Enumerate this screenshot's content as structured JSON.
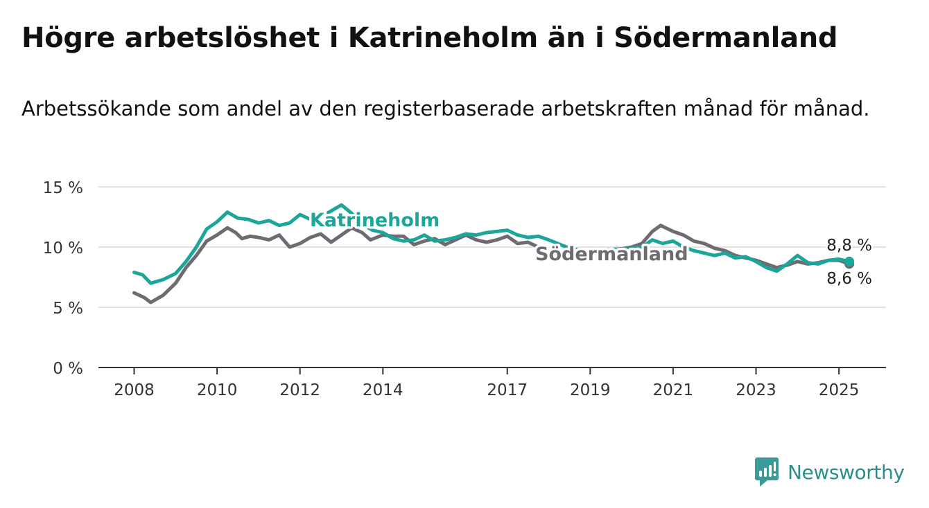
{
  "title": "Högre arbetslöshet i Katrineholm än i Södermanland",
  "subtitle": "Arbetssökande som andel av den registerbaserade arbetskraften månad för månad.",
  "brand": {
    "name": "Newsworthy",
    "icon": "newsworthy-logo-icon",
    "color": "#3a9b98"
  },
  "chart_data": {
    "type": "line",
    "x_ticks": [
      "2008",
      "2010",
      "2012",
      "2014",
      "2017",
      "2019",
      "2021",
      "2023",
      "2025"
    ],
    "y_ticks": [
      "0 %",
      "5 %",
      "10 %",
      "15 %"
    ],
    "ylim": [
      0,
      15
    ],
    "grid": true,
    "series": [
      {
        "name": "Södermanland",
        "color": "#6e6b72",
        "end_label": "8,6 %",
        "points": [
          [
            2008.0,
            6.2
          ],
          [
            2008.25,
            5.8
          ],
          [
            2008.4,
            5.4
          ],
          [
            2008.7,
            6.0
          ],
          [
            2009.0,
            7.0
          ],
          [
            2009.25,
            8.3
          ],
          [
            2009.5,
            9.3
          ],
          [
            2009.75,
            10.5
          ],
          [
            2010.0,
            11.0
          ],
          [
            2010.25,
            11.6
          ],
          [
            2010.45,
            11.2
          ],
          [
            2010.6,
            10.7
          ],
          [
            2010.8,
            10.9
          ],
          [
            2011.0,
            10.8
          ],
          [
            2011.25,
            10.6
          ],
          [
            2011.5,
            11.0
          ],
          [
            2011.75,
            10.0
          ],
          [
            2012.0,
            10.3
          ],
          [
            2012.25,
            10.8
          ],
          [
            2012.5,
            11.1
          ],
          [
            2012.75,
            10.4
          ],
          [
            2013.0,
            11.0
          ],
          [
            2013.25,
            11.6
          ],
          [
            2013.5,
            11.2
          ],
          [
            2013.7,
            10.6
          ],
          [
            2014.0,
            11.0
          ],
          [
            2014.25,
            10.9
          ],
          [
            2014.5,
            10.9
          ],
          [
            2014.75,
            10.2
          ],
          [
            2015.0,
            10.5
          ],
          [
            2015.25,
            10.7
          ],
          [
            2015.5,
            10.2
          ],
          [
            2015.75,
            10.6
          ],
          [
            2016.0,
            11.0
          ],
          [
            2016.25,
            10.6
          ],
          [
            2016.5,
            10.4
          ],
          [
            2016.75,
            10.6
          ],
          [
            2017.0,
            10.9
          ],
          [
            2017.25,
            10.3
          ],
          [
            2017.5,
            10.4
          ],
          [
            2017.75,
            10.0
          ],
          [
            2018.0,
            9.6
          ],
          [
            2018.5,
            9.4
          ],
          [
            2019.0,
            9.4
          ],
          [
            2019.5,
            9.7
          ],
          [
            2020.0,
            10.0
          ],
          [
            2020.25,
            10.3
          ],
          [
            2020.5,
            11.3
          ],
          [
            2020.7,
            11.8
          ],
          [
            2021.0,
            11.3
          ],
          [
            2021.25,
            11.0
          ],
          [
            2021.5,
            10.5
          ],
          [
            2021.75,
            10.3
          ],
          [
            2022.0,
            9.9
          ],
          [
            2022.25,
            9.7
          ],
          [
            2022.5,
            9.3
          ],
          [
            2022.75,
            9.1
          ],
          [
            2023.0,
            8.9
          ],
          [
            2023.25,
            8.6
          ],
          [
            2023.5,
            8.3
          ],
          [
            2023.75,
            8.5
          ],
          [
            2024.0,
            8.8
          ],
          [
            2024.25,
            8.6
          ],
          [
            2024.5,
            8.7
          ],
          [
            2024.75,
            8.9
          ],
          [
            2025.0,
            8.9
          ],
          [
            2025.25,
            8.6
          ]
        ]
      },
      {
        "name": "Katrineholm",
        "color": "#1ca699",
        "end_label": "8,8 %",
        "points": [
          [
            2008.0,
            7.9
          ],
          [
            2008.2,
            7.7
          ],
          [
            2008.4,
            7.0
          ],
          [
            2008.7,
            7.3
          ],
          [
            2009.0,
            7.8
          ],
          [
            2009.25,
            8.8
          ],
          [
            2009.5,
            10.0
          ],
          [
            2009.75,
            11.5
          ],
          [
            2010.0,
            12.1
          ],
          [
            2010.25,
            12.9
          ],
          [
            2010.5,
            12.4
          ],
          [
            2010.75,
            12.3
          ],
          [
            2011.0,
            12.0
          ],
          [
            2011.25,
            12.2
          ],
          [
            2011.5,
            11.8
          ],
          [
            2011.75,
            12.0
          ],
          [
            2012.0,
            12.7
          ],
          [
            2012.25,
            12.3
          ],
          [
            2012.5,
            12.5
          ],
          [
            2012.75,
            13.0
          ],
          [
            2013.0,
            13.5
          ],
          [
            2013.25,
            12.8
          ],
          [
            2013.5,
            11.9
          ],
          [
            2013.75,
            11.4
          ],
          [
            2014.0,
            11.2
          ],
          [
            2014.25,
            10.7
          ],
          [
            2014.5,
            10.5
          ],
          [
            2014.75,
            10.6
          ],
          [
            2015.0,
            11.0
          ],
          [
            2015.25,
            10.5
          ],
          [
            2015.5,
            10.6
          ],
          [
            2015.75,
            10.8
          ],
          [
            2016.0,
            11.1
          ],
          [
            2016.25,
            11.0
          ],
          [
            2016.5,
            11.2
          ],
          [
            2016.75,
            11.3
          ],
          [
            2017.0,
            11.4
          ],
          [
            2017.25,
            11.0
          ],
          [
            2017.5,
            10.8
          ],
          [
            2017.75,
            10.9
          ],
          [
            2018.0,
            10.6
          ],
          [
            2018.5,
            9.9
          ],
          [
            2019.0,
            9.6
          ],
          [
            2019.5,
            9.8
          ],
          [
            2020.0,
            9.9
          ],
          [
            2020.25,
            10.0
          ],
          [
            2020.5,
            10.6
          ],
          [
            2020.75,
            10.3
          ],
          [
            2021.0,
            10.5
          ],
          [
            2021.25,
            10.0
          ],
          [
            2021.5,
            9.7
          ],
          [
            2021.75,
            9.5
          ],
          [
            2022.0,
            9.3
          ],
          [
            2022.25,
            9.5
          ],
          [
            2022.5,
            9.1
          ],
          [
            2022.75,
            9.2
          ],
          [
            2023.0,
            8.8
          ],
          [
            2023.25,
            8.3
          ],
          [
            2023.5,
            8.0
          ],
          [
            2023.75,
            8.6
          ],
          [
            2024.0,
            9.3
          ],
          [
            2024.25,
            8.7
          ],
          [
            2024.5,
            8.6
          ],
          [
            2024.75,
            8.9
          ],
          [
            2025.0,
            9.0
          ],
          [
            2025.25,
            8.8
          ]
        ]
      }
    ]
  }
}
